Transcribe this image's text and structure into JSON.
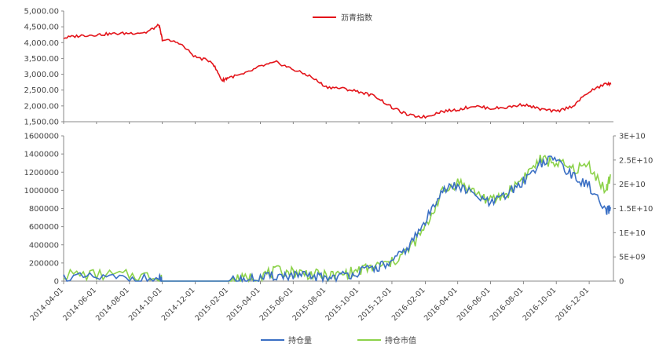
{
  "chart_data": [
    {
      "type": "line",
      "title": "",
      "xlabel": "",
      "ylabel": "",
      "ylim": [
        1500,
        5000
      ],
      "yticks": [
        "1,500.00",
        "2,000.00",
        "2,500.00",
        "3,000.00",
        "3,500.00",
        "4,000.00",
        "4,500.00",
        "5,000.00"
      ],
      "ytick_values": [
        1500,
        2000,
        2500,
        3000,
        3500,
        4000,
        4500,
        5000
      ],
      "grid": false,
      "legend_position": "top-center",
      "series": [
        {
          "name": "沥青指数",
          "color": "#e3141a",
          "points": [
            [
              "2014-04-01",
              4150
            ],
            [
              "2014-05-01",
              4220
            ],
            [
              "2014-06-01",
              4250
            ],
            [
              "2014-07-01",
              4280
            ],
            [
              "2014-08-01",
              4300
            ],
            [
              "2014-09-01",
              4320
            ],
            [
              "2014-09-25",
              4550
            ],
            [
              "2014-10-01",
              4100
            ],
            [
              "2014-11-01",
              4000
            ],
            [
              "2014-12-01",
              3550
            ],
            [
              "2015-01-01",
              3400
            ],
            [
              "2015-01-20",
              2800
            ],
            [
              "2015-02-01",
              2900
            ],
            [
              "2015-03-01",
              3000
            ],
            [
              "2015-04-01",
              3250
            ],
            [
              "2015-05-01",
              3380
            ],
            [
              "2015-06-01",
              3150
            ],
            [
              "2015-07-01",
              2950
            ],
            [
              "2015-08-01",
              2600
            ],
            [
              "2015-09-01",
              2550
            ],
            [
              "2015-10-01",
              2450
            ],
            [
              "2015-11-01",
              2300
            ],
            [
              "2015-12-01",
              1950
            ],
            [
              "2016-01-01",
              1700
            ],
            [
              "2016-02-01",
              1650
            ],
            [
              "2016-03-01",
              1820
            ],
            [
              "2016-04-01",
              1880
            ],
            [
              "2016-05-01",
              2000
            ],
            [
              "2016-06-01",
              1920
            ],
            [
              "2016-07-01",
              1950
            ],
            [
              "2016-08-01",
              2050
            ],
            [
              "2016-09-01",
              1900
            ],
            [
              "2016-10-01",
              1820
            ],
            [
              "2016-11-01",
              2000
            ],
            [
              "2016-12-01",
              2450
            ],
            [
              "2017-01-01",
              2700
            ],
            [
              "2017-01-10",
              2680
            ]
          ]
        }
      ]
    },
    {
      "type": "line",
      "title": "",
      "xlabel": "",
      "ylabel": "",
      "ylim": [
        0,
        1600000
      ],
      "y2lim": [
        0,
        30000000000
      ],
      "yticks": [
        "0",
        "200000",
        "400000",
        "600000",
        "800000",
        "1000000",
        "1200000",
        "1400000",
        "1600000"
      ],
      "ytick_values": [
        0,
        200000,
        400000,
        600000,
        800000,
        1000000,
        1200000,
        1400000,
        1600000
      ],
      "y2ticks": [
        "0",
        "5E+09",
        "1E+10",
        "1.5E+10",
        "2E+10",
        "2.5E+10",
        "3E+10"
      ],
      "y2tick_values": [
        0,
        5000000000,
        10000000000,
        15000000000,
        20000000000,
        25000000000,
        30000000000
      ],
      "xticks": [
        "2014-04-01",
        "2014-06-01",
        "2014-08-01",
        "2014-10-01",
        "2014-12-01",
        "2015-02-01",
        "2015-04-01",
        "2015-06-01",
        "2015-08-01",
        "2015-10-01",
        "2015-12-01",
        "2016-02-01",
        "2016-04-01",
        "2016-06-01",
        "2016-08-01",
        "2016-10-01",
        "2016-12-01"
      ],
      "grid": false,
      "legend_position": "bottom-center",
      "series": [
        {
          "name": "持仓量",
          "color": "#3a6fc4",
          "axis": "left",
          "points": [
            [
              "2014-04-01",
              40000
            ],
            [
              "2014-06-01",
              35000
            ],
            [
              "2014-08-01",
              30000
            ],
            [
              "2014-09-25",
              20000
            ],
            [
              "2014-10-01",
              0
            ],
            [
              "2014-12-01",
              0
            ],
            [
              "2015-02-01",
              0
            ],
            [
              "2015-03-01",
              10000
            ],
            [
              "2015-04-01",
              30000
            ],
            [
              "2015-05-01",
              60000
            ],
            [
              "2015-06-01",
              60000
            ],
            [
              "2015-07-01",
              50000
            ],
            [
              "2015-08-01",
              40000
            ],
            [
              "2015-09-01",
              60000
            ],
            [
              "2015-10-01",
              100000
            ],
            [
              "2015-11-01",
              150000
            ],
            [
              "2015-12-01",
              200000
            ],
            [
              "2016-01-01",
              380000
            ],
            [
              "2016-02-01",
              650000
            ],
            [
              "2016-03-01",
              1000000
            ],
            [
              "2016-04-01",
              1050000
            ],
            [
              "2016-05-01",
              950000
            ],
            [
              "2016-06-01",
              850000
            ],
            [
              "2016-07-01",
              950000
            ],
            [
              "2016-08-01",
              1100000
            ],
            [
              "2016-09-01",
              1300000
            ],
            [
              "2016-10-01",
              1350000
            ],
            [
              "2016-11-01",
              1150000
            ],
            [
              "2016-12-01",
              1050000
            ],
            [
              "2017-01-01",
              750000
            ],
            [
              "2017-01-10",
              800000
            ]
          ]
        },
        {
          "name": "持仓市值",
          "color": "#8cd24a",
          "axis": "right",
          "points": [
            [
              "2014-04-01",
              1400000000
            ],
            [
              "2014-06-01",
              1300000000
            ],
            [
              "2014-08-01",
              1200000000
            ],
            [
              "2014-09-25",
              900000000
            ],
            [
              "2014-10-01",
              0
            ],
            [
              "2014-12-01",
              0
            ],
            [
              "2015-02-01",
              0
            ],
            [
              "2015-03-01",
              400000000
            ],
            [
              "2015-04-01",
              1200000000
            ],
            [
              "2015-05-01",
              2000000000
            ],
            [
              "2015-06-01",
              1900000000
            ],
            [
              "2015-07-01",
              1500000000
            ],
            [
              "2015-08-01",
              1000000000
            ],
            [
              "2015-09-01",
              1400000000
            ],
            [
              "2015-10-01",
              2200000000
            ],
            [
              "2015-11-01",
              3000000000
            ],
            [
              "2015-12-01",
              3800000000
            ],
            [
              "2016-01-01",
              6500000000
            ],
            [
              "2016-02-01",
              11000000000
            ],
            [
              "2016-03-01",
              18000000000
            ],
            [
              "2016-04-01",
              20500000000
            ],
            [
              "2016-05-01",
              18500000000
            ],
            [
              "2016-06-01",
              16500000000
            ],
            [
              "2016-07-01",
              18000000000
            ],
            [
              "2016-08-01",
              21500000000
            ],
            [
              "2016-09-01",
              25000000000
            ],
            [
              "2016-10-01",
              24500000000
            ],
            [
              "2016-11-01",
              23000000000
            ],
            [
              "2016-12-01",
              24000000000
            ],
            [
              "2017-01-01",
              18500000000
            ],
            [
              "2017-01-10",
              22000000000
            ]
          ]
        }
      ]
    }
  ]
}
